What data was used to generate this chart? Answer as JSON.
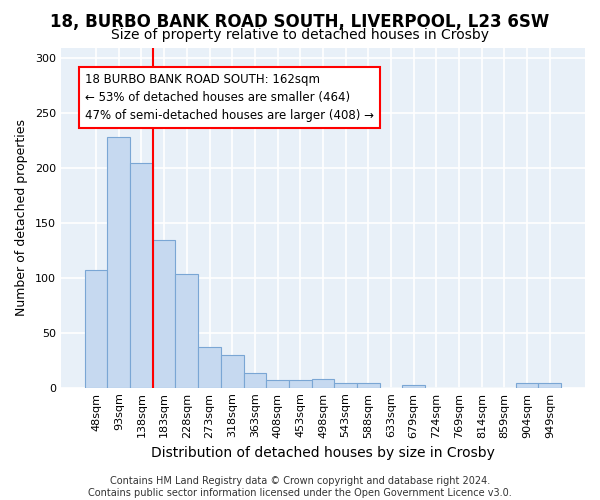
{
  "title1": "18, BURBO BANK ROAD SOUTH, LIVERPOOL, L23 6SW",
  "title2": "Size of property relative to detached houses in Crosby",
  "xlabel": "Distribution of detached houses by size in Crosby",
  "ylabel": "Number of detached properties",
  "bar_labels": [
    "48sqm",
    "93sqm",
    "138sqm",
    "183sqm",
    "228sqm",
    "273sqm",
    "318sqm",
    "363sqm",
    "408sqm",
    "453sqm",
    "498sqm",
    "543sqm",
    "588sqm",
    "633sqm",
    "679sqm",
    "724sqm",
    "769sqm",
    "814sqm",
    "859sqm",
    "904sqm",
    "949sqm"
  ],
  "bar_values": [
    107,
    228,
    205,
    135,
    104,
    37,
    30,
    13,
    7,
    7,
    8,
    4,
    4,
    0,
    2,
    0,
    0,
    0,
    0,
    4,
    4
  ],
  "bar_color": "#c6d9f0",
  "bar_edge_color": "#7aa6d4",
  "red_line_x": 2.5,
  "annotation_text": "18 BURBO BANK ROAD SOUTH: 162sqm\n← 53% of detached houses are smaller (464)\n47% of semi-detached houses are larger (408) →",
  "annotation_box_color": "white",
  "annotation_box_edge_color": "red",
  "red_line_color": "red",
  "ylim": [
    0,
    310
  ],
  "yticks": [
    0,
    50,
    100,
    150,
    200,
    250,
    300
  ],
  "footer": "Contains HM Land Registry data © Crown copyright and database right 2024.\nContains public sector information licensed under the Open Government Licence v3.0.",
  "background_color": "#ffffff",
  "plot_background_color": "#e8f0f8",
  "grid_color": "#ffffff",
  "title1_fontsize": 12,
  "title2_fontsize": 10,
  "xlabel_fontsize": 10,
  "ylabel_fontsize": 9,
  "tick_fontsize": 8,
  "annotation_fontsize": 8.5,
  "footer_fontsize": 7
}
